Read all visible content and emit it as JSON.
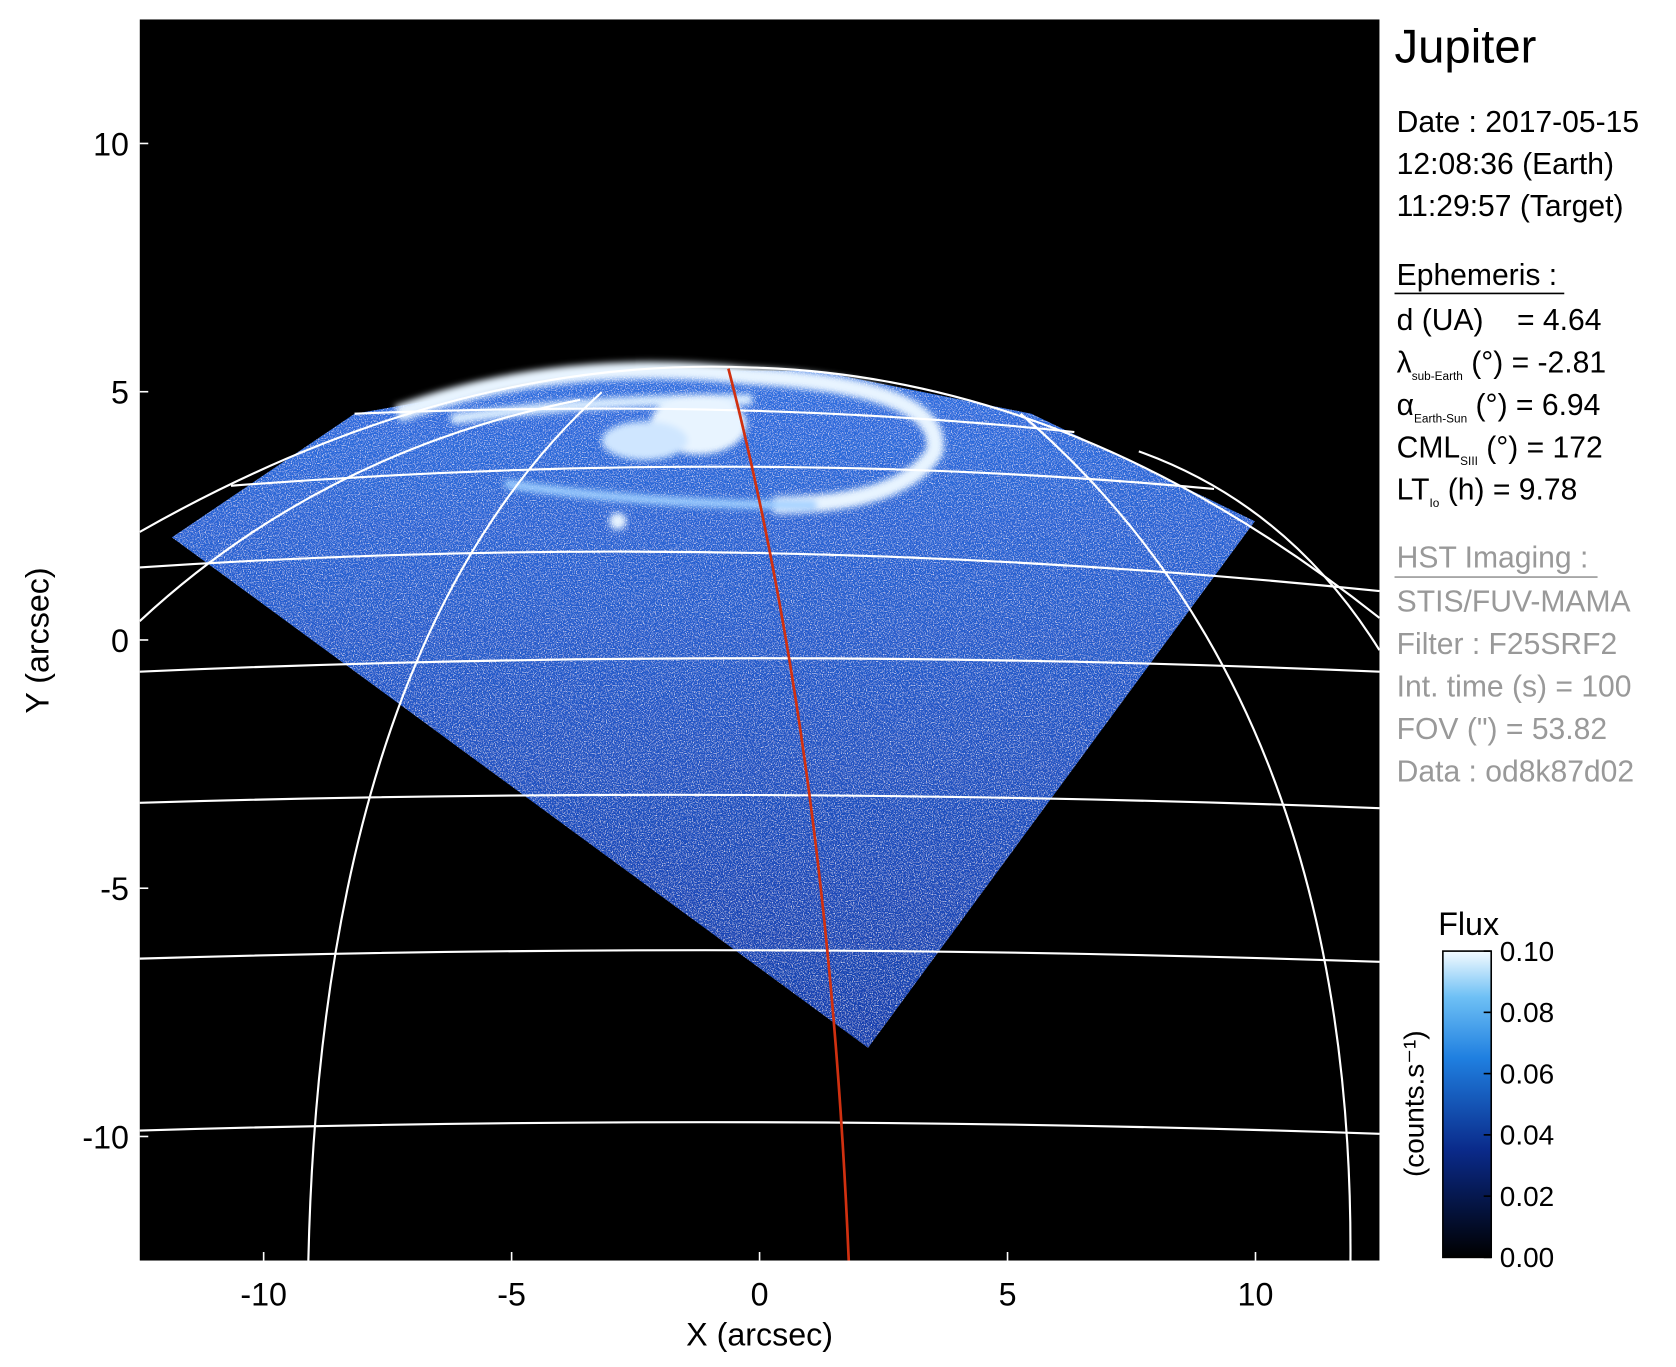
{
  "chart_data": {
    "type": "image",
    "xlabel": "X (arcsec)",
    "ylabel": "Y (arcsec)",
    "xlim": [
      -12.5,
      12.5
    ],
    "ylim": [
      -12.5,
      12.5
    ],
    "xticks": [
      -10,
      -5,
      0,
      5,
      10
    ],
    "yticks": [
      -10,
      -5,
      0,
      5,
      10
    ],
    "colorbar": {
      "title": "Flux",
      "label": "(counts.s⁻¹)",
      "lim": [
        0,
        0.1
      ],
      "ticks": [
        {
          "value": 0,
          "label": "0.00"
        },
        {
          "value": 0.02,
          "label": "0.02"
        },
        {
          "value": 0.04,
          "label": "0.04"
        },
        {
          "value": 0.06,
          "label": "0.06"
        },
        {
          "value": 0.08,
          "label": "0.08"
        },
        {
          "value": 0.1,
          "label": "0.10"
        }
      ]
    }
  },
  "info": {
    "title": "Jupiter",
    "date": [
      "Date : 2017-05-15",
      "12:08:36 (Earth)",
      "11:29:57 (Target)"
    ],
    "ephemeris_title": "Ephemeris :",
    "ephemeris": [
      {
        "text": "d (UA)    = 4.64"
      },
      {
        "text": "λ",
        "sub": "sub-Earth",
        "rest": " (°) = -2.81"
      },
      {
        "text": "α",
        "sub": "Earth-Sun",
        "rest": " (°) = 6.94"
      },
      {
        "text": "CML",
        "sub": "SIII",
        "rest": " (°) = 172"
      },
      {
        "text": "LT",
        "sub": "Io",
        "rest": " (h) = 9.78"
      }
    ],
    "imaging_title": "HST Imaging :",
    "imaging": [
      "STIS/FUV-MAMA",
      "Filter : F25SRF2",
      "Int. time (s) = 100",
      "FOV (\") = 53.82",
      "Data : od8k87d02"
    ]
  }
}
